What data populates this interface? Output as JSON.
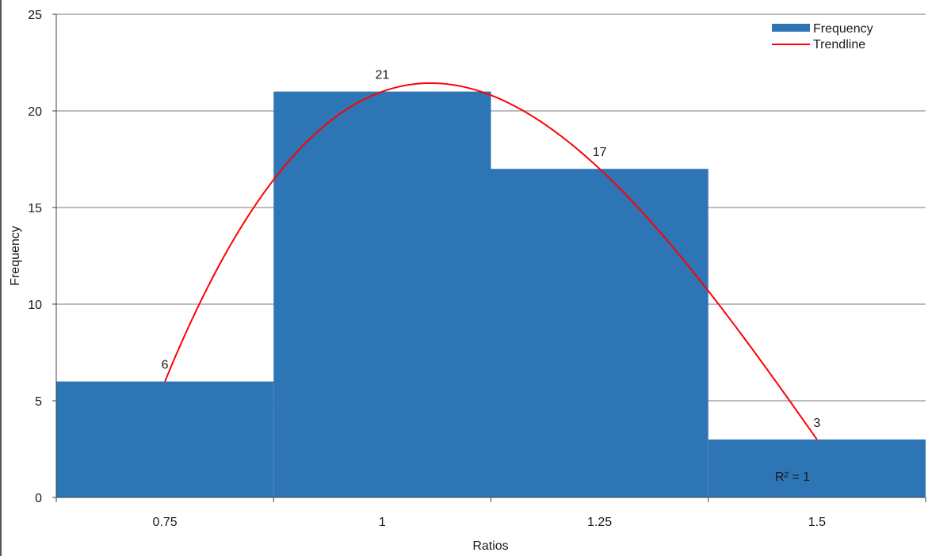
{
  "chart_data": {
    "type": "bar",
    "title": "",
    "xlabel": "Ratios",
    "ylabel": "Frequency",
    "categories": [
      "0.75",
      "1",
      "1.25",
      "1.5"
    ],
    "series": [
      {
        "name": "Frequency",
        "type": "bar",
        "values": [
          6,
          21,
          17,
          3
        ],
        "color": "#2E75B6"
      },
      {
        "name": "Trendline",
        "type": "line",
        "kind": "polynomial",
        "x": [
          0.75,
          1,
          1.25,
          1.5
        ],
        "values": [
          6,
          21,
          17,
          3
        ],
        "color": "#FF0000"
      }
    ],
    "data_labels": [
      "6",
      "21",
      "17",
      "3"
    ],
    "y_ticks": [
      "0",
      "5",
      "10",
      "15",
      "20",
      "25"
    ],
    "ylim": [
      0,
      25
    ],
    "y_step": 5,
    "annotation": "R² = 1",
    "grid": true,
    "legend_position": "top-right"
  }
}
